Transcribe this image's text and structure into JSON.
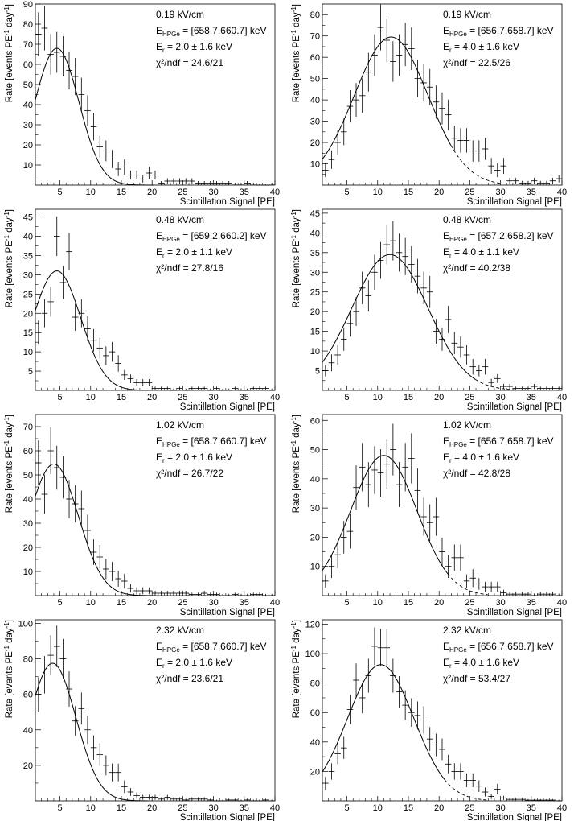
{
  "chart_data": [
    {
      "type": "scatter",
      "xlabel": "Scintillation Signal [PE]",
      "ylabel": "Rate [events PE^-1 day^-1]",
      "xlim": [
        1,
        40
      ],
      "ylim": [
        0,
        90
      ],
      "xticks": [
        5,
        10,
        15,
        20,
        25,
        30,
        35,
        40
      ],
      "yticks": [
        10,
        20,
        30,
        40,
        50,
        60,
        70,
        80,
        90
      ],
      "annotations": [
        "0.19 kV/cm",
        "[658.7,660.7] keV",
        "2.0 ± 1.6 keV",
        "χ²/ndf = 24.6/21"
      ],
      "fit": {
        "amp": 68,
        "mu": 4.5,
        "sigma": 3.6,
        "solid_to": 20,
        "end": 21
      },
      "series": [
        {
          "name": "data",
          "x": [
            1.5,
            2.5,
            3.5,
            4.5,
            5.5,
            6.5,
            7.5,
            8.5,
            9.5,
            10.5,
            11.5,
            12.5,
            13.5,
            14.5,
            15.5,
            16.5,
            17.5,
            18.5,
            19.5,
            20.5,
            21.5,
            22.5,
            23.5,
            24.5,
            25.5,
            26.5,
            27.5,
            28.5,
            29.5,
            30.5,
            31.5,
            32.5,
            33.5,
            34.5,
            35.5,
            36.5,
            37.5,
            38.5,
            39.5
          ],
          "y": [
            75,
            78,
            65,
            66,
            64,
            57,
            54,
            45,
            37,
            29,
            19,
            17,
            13,
            8,
            9,
            5,
            5,
            3,
            6,
            5,
            1,
            2,
            2,
            2,
            2,
            2,
            1,
            1,
            1,
            1,
            1,
            1,
            0.5,
            0.5,
            1,
            0.5,
            0,
            0,
            0.5
          ]
        }
      ]
    },
    {
      "type": "scatter",
      "xlabel": "Scintillation Signal [PE]",
      "ylabel": "Rate [events PE^-1 day^-1]",
      "xlim": [
        1,
        40
      ],
      "ylim": [
        0,
        85
      ],
      "xticks": [
        5,
        10,
        15,
        20,
        25,
        30,
        35,
        40
      ],
      "yticks": [
        10,
        20,
        30,
        40,
        50,
        60,
        70,
        80
      ],
      "annotations": [
        "0.19 kV/cm",
        "[656.7,658.7] keV",
        "4.0 ± 1.6 keV",
        "χ²/ndf = 22.5/26"
      ],
      "fit": {
        "amp": 69.5,
        "mu": 12.2,
        "sigma": 6.0,
        "solid_to": 22,
        "end": 30
      },
      "series": [
        {
          "name": "data",
          "x": [
            1.5,
            2.5,
            3.5,
            4.5,
            5.5,
            6.5,
            7.5,
            8.5,
            9.5,
            10.5,
            11.5,
            12.5,
            13.5,
            14.5,
            15.5,
            16.5,
            17.5,
            18.5,
            19.5,
            20.5,
            21.5,
            22.5,
            23.5,
            24.5,
            25.5,
            26.5,
            27.5,
            28.5,
            29.5,
            30.5,
            31.5,
            32.5,
            33.5,
            34.5,
            35.5,
            36.5,
            37.5,
            38.5,
            39.5
          ],
          "y": [
            7,
            12,
            20,
            25,
            37,
            40,
            42,
            53,
            61,
            74,
            68,
            58,
            61,
            66,
            64,
            50,
            48,
            46,
            39,
            36,
            33,
            22,
            21,
            21,
            16,
            16,
            17,
            9,
            7,
            9,
            2,
            2,
            1,
            1,
            2,
            1,
            1,
            2,
            3
          ]
        }
      ]
    },
    {
      "type": "scatter",
      "xlabel": "Scintillation Signal [PE]",
      "ylabel": "Rate [events PE^-1 day^-1]",
      "xlim": [
        1,
        40
      ],
      "ylim": [
        0,
        47
      ],
      "xticks": [
        5,
        10,
        15,
        20,
        25,
        30,
        35,
        40
      ],
      "yticks": [
        5,
        10,
        15,
        20,
        25,
        30,
        35,
        40,
        45
      ],
      "annotations": [
        "0.48 kV/cm",
        "[659.2,660.2] keV",
        "2.0 ± 1.1 keV",
        "χ²/ndf = 27.8/16"
      ],
      "fit": {
        "amp": 31,
        "mu": 4.5,
        "sigma": 3.9,
        "solid_to": 19.5,
        "end": 20
      },
      "series": [
        {
          "name": "data",
          "x": [
            1.5,
            2.5,
            3.5,
            4.5,
            5.5,
            6.5,
            7.5,
            8.5,
            9.5,
            10.5,
            11.5,
            12.5,
            13.5,
            14.5,
            15.5,
            16.5,
            17.5,
            18.5,
            19.5,
            20.5,
            21.5,
            22.5,
            23.5,
            24.5,
            25.5,
            26.5,
            27.5,
            28.5,
            29.5,
            30.5,
            31.5,
            32.5,
            33.5,
            34.5,
            35.5,
            36.5,
            37.5,
            38.5,
            39.5
          ],
          "y": [
            15,
            20,
            23,
            40,
            28,
            36,
            19,
            20,
            16,
            13,
            11,
            9,
            10,
            7,
            4,
            3,
            2,
            2,
            2,
            0.5,
            0.5,
            0.5,
            0,
            0.5,
            0,
            0.5,
            0.5,
            0.5,
            0,
            0.5,
            0,
            0,
            0.5,
            0,
            0,
            0.5,
            0.5,
            0.5,
            0
          ]
        }
      ]
    },
    {
      "type": "scatter",
      "xlabel": "Scintillation Signal [PE]",
      "ylabel": "Rate [events PE^-1 day^-1]",
      "xlim": [
        1,
        40
      ],
      "ylim": [
        0,
        46
      ],
      "xticks": [
        5,
        10,
        15,
        20,
        25,
        30,
        35,
        40
      ],
      "yticks": [
        5,
        10,
        15,
        20,
        25,
        30,
        35,
        40,
        45
      ],
      "annotations": [
        "0.48 kV/cm",
        "[657.2,658.2] keV",
        "4.0 ± 1.1 keV",
        "χ²/ndf = 40.2/38"
      ],
      "fit": {
        "amp": 34.5,
        "mu": 12.0,
        "sigma": 6.2,
        "solid_to": 26,
        "end": 34
      },
      "series": [
        {
          "name": "data",
          "x": [
            1.5,
            2.5,
            3.5,
            4.5,
            5.5,
            6.5,
            7.5,
            8.5,
            9.5,
            10.5,
            11.5,
            12.5,
            13.5,
            14.5,
            15.5,
            16.5,
            17.5,
            18.5,
            19.5,
            20.5,
            21.5,
            22.5,
            23.5,
            24.5,
            25.5,
            26.5,
            27.5,
            28.5,
            29.5,
            30.5,
            31.5,
            32.5,
            33.5,
            34.5,
            35.5,
            36.5,
            37.5,
            38.5,
            39.5
          ],
          "y": [
            5,
            7,
            9,
            13,
            17,
            20,
            26,
            24,
            30,
            33,
            37,
            38,
            35,
            34,
            32,
            29,
            26,
            25,
            15,
            13,
            18,
            12,
            11,
            9,
            6,
            5,
            6,
            2,
            3,
            1,
            1,
            0.5,
            0.5,
            0.5,
            1,
            0.5,
            0.5,
            0.5,
            0.5
          ]
        }
      ]
    },
    {
      "type": "scatter",
      "xlabel": "Scintillation Signal [PE]",
      "ylabel": "Rate [events PE^-1 day^-1]",
      "xlim": [
        1,
        40
      ],
      "ylim": [
        0,
        75
      ],
      "xticks": [
        5,
        10,
        15,
        20,
        25,
        30,
        35,
        40
      ],
      "yticks": [
        10,
        20,
        30,
        40,
        50,
        60,
        70
      ],
      "annotations": [
        "1.02 kV/cm",
        "[658.7,660.7] keV",
        "2.0 ± 1.6 keV",
        "χ²/ndf = 26.7/22"
      ],
      "fit": {
        "amp": 54.5,
        "mu": 4.0,
        "sigma": 4.0,
        "solid_to": 20,
        "end": 21
      },
      "series": [
        {
          "name": "data",
          "x": [
            1.5,
            2.5,
            3.5,
            4.5,
            5.5,
            6.5,
            7.5,
            8.5,
            9.5,
            10.5,
            11.5,
            12.5,
            13.5,
            14.5,
            15.5,
            16.5,
            17.5,
            18.5,
            19.5,
            20.5,
            21.5,
            22.5,
            23.5,
            24.5,
            25.5,
            26.5,
            27.5,
            28.5,
            29.5,
            30.5,
            31.5,
            32.5,
            33.5,
            34.5,
            35.5,
            36.5,
            37.5,
            38.5,
            39.5
          ],
          "y": [
            55,
            42,
            60,
            53,
            49,
            40,
            38,
            36,
            27,
            18,
            16,
            11,
            10,
            7,
            6,
            3,
            2,
            2,
            2,
            1,
            1,
            1,
            1,
            1,
            1,
            0.5,
            0.5,
            1,
            0.5,
            0.5,
            0,
            0,
            0.5,
            0,
            0,
            0.5,
            0.5,
            0,
            0
          ]
        }
      ]
    },
    {
      "type": "scatter",
      "xlabel": "Scintillation Signal [PE]",
      "ylabel": "Rate [events PE^-1 day^-1]",
      "xlim": [
        1,
        40
      ],
      "ylim": [
        0,
        62
      ],
      "xticks": [
        5,
        10,
        15,
        20,
        25,
        30,
        35,
        40
      ],
      "yticks": [
        10,
        20,
        30,
        40,
        50,
        60
      ],
      "annotations": [
        "1.02 kV/cm",
        "[656.7,658.7] keV",
        "4.0 ± 1.6 keV",
        "χ²/ndf = 42.8/28"
      ],
      "fit": {
        "amp": 48,
        "mu": 11.0,
        "sigma": 5.4,
        "solid_to": 21.5,
        "end": 28
      },
      "series": [
        {
          "name": "data",
          "x": [
            1.5,
            2.5,
            3.5,
            4.5,
            5.5,
            6.5,
            7.5,
            8.5,
            9.5,
            10.5,
            11.5,
            12.5,
            13.5,
            14.5,
            15.5,
            16.5,
            17.5,
            18.5,
            19.5,
            20.5,
            21.5,
            22.5,
            23.5,
            24.5,
            25.5,
            26.5,
            27.5,
            28.5,
            29.5,
            30.5,
            31.5,
            32.5,
            33.5,
            34.5,
            35.5,
            36.5,
            37.5,
            38.5,
            39.5
          ],
          "y": [
            5,
            10,
            14,
            20,
            22,
            37,
            44,
            38,
            43,
            42,
            45,
            50,
            38,
            44,
            47,
            36,
            27,
            25,
            27,
            15,
            10,
            13,
            13,
            5,
            6,
            4,
            3,
            3,
            3,
            1,
            0.5,
            0.5,
            0.5,
            0.5,
            0,
            0.5,
            0.5,
            0.5,
            0
          ]
        }
      ]
    },
    {
      "type": "scatter",
      "xlabel": "Scintillation Signal [PE]",
      "ylabel": "Rate [events PE^-1 day^-1]",
      "xlim": [
        1,
        40
      ],
      "ylim": [
        0,
        102
      ],
      "xticks": [
        5,
        10,
        15,
        20,
        25,
        30,
        35,
        40
      ],
      "yticks": [
        20,
        40,
        60,
        80,
        100
      ],
      "annotations": [
        "2.32 kV/cm",
        "[658.7,660.7] keV",
        "2.0 ± 1.6 keV",
        "χ²/ndf = 23.6/21"
      ],
      "fit": {
        "amp": 77.5,
        "mu": 3.8,
        "sigma": 3.8,
        "solid_to": 19.5,
        "end": 20
      },
      "series": [
        {
          "name": "data",
          "x": [
            1.5,
            2.5,
            3.5,
            4.5,
            5.5,
            6.5,
            7.5,
            8.5,
            9.5,
            10.5,
            11.5,
            12.5,
            13.5,
            14.5,
            15.5,
            16.5,
            17.5,
            18.5,
            19.5,
            20.5,
            21.5,
            22.5,
            23.5,
            24.5,
            25.5,
            26.5,
            27.5,
            28.5,
            29.5,
            30.5,
            31.5,
            32.5,
            33.5,
            34.5,
            35.5,
            36.5,
            37.5,
            38.5,
            39.5
          ],
          "y": [
            60,
            71,
            82,
            87,
            80,
            63,
            45,
            52,
            40,
            30,
            26,
            20,
            16,
            16,
            8,
            5,
            3,
            2,
            2,
            2,
            1,
            2,
            1,
            1,
            0.5,
            1,
            1,
            1,
            0.5,
            0,
            0,
            0.5,
            0.5,
            0,
            0.5,
            0,
            0,
            0.5,
            0
          ]
        }
      ]
    },
    {
      "type": "scatter",
      "xlabel": "Scintillation Signal [PE]",
      "ylabel": "Rate [events PE^-1 day^-1]",
      "xlim": [
        1,
        40
      ],
      "ylim": [
        0,
        123
      ],
      "xticks": [
        5,
        10,
        15,
        20,
        25,
        30,
        35,
        40
      ],
      "yticks": [
        20,
        40,
        60,
        80,
        100,
        120
      ],
      "annotations": [
        "2.32 kV/cm",
        "[656.7,658.7] keV",
        "4.0 ± 1.6 keV",
        "χ²/ndf = 53.4/27"
      ],
      "fit": {
        "amp": 92.5,
        "mu": 10.5,
        "sigma": 5.4,
        "solid_to": 21,
        "end": 28
      },
      "series": [
        {
          "name": "data",
          "x": [
            1.5,
            2.5,
            3.5,
            4.5,
            5.5,
            6.5,
            7.5,
            8.5,
            9.5,
            10.5,
            11.5,
            12.5,
            13.5,
            14.5,
            15.5,
            16.5,
            17.5,
            18.5,
            19.5,
            20.5,
            21.5,
            22.5,
            23.5,
            24.5,
            25.5,
            26.5,
            27.5,
            28.5,
            29.5,
            30.5,
            31.5,
            32.5,
            33.5,
            34.5,
            35.5,
            36.5,
            37.5,
            38.5,
            39.5
          ],
          "y": [
            12,
            20,
            32,
            36,
            62,
            82,
            70,
            85,
            105,
            104,
            104,
            85,
            74,
            65,
            60,
            58,
            55,
            42,
            38,
            35,
            25,
            20,
            20,
            14,
            14,
            10,
            6,
            3,
            8,
            2,
            1,
            1,
            1,
            0.5,
            0.5,
            0.5,
            0.5,
            0.5,
            0
          ]
        }
      ]
    }
  ]
}
